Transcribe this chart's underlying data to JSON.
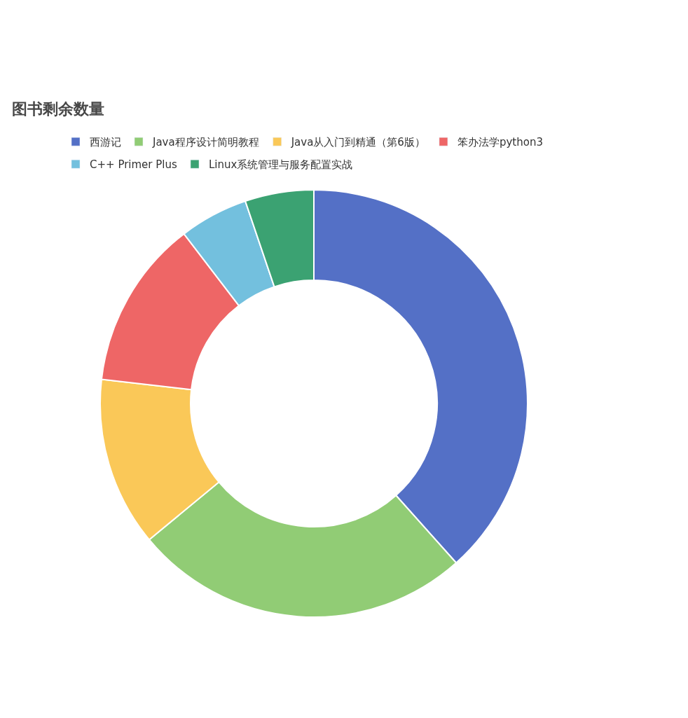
{
  "chart_data": {
    "type": "donut",
    "title": "图书剩余数量",
    "categories": [
      "西游记",
      "Java程序设计简明教程",
      "Java从入门到精通（第6版）",
      "笨办法学python3",
      "C++ Primer Plus",
      "Linux系统管理与服务配置实战"
    ],
    "values": [
      38.4,
      25.6,
      12.8,
      12.8,
      5.2,
      5.2
    ],
    "colors": [
      "#5470c6",
      "#91cc75",
      "#fac858",
      "#ee6666",
      "#73c0de",
      "#3ba272"
    ],
    "legend": "top"
  }
}
